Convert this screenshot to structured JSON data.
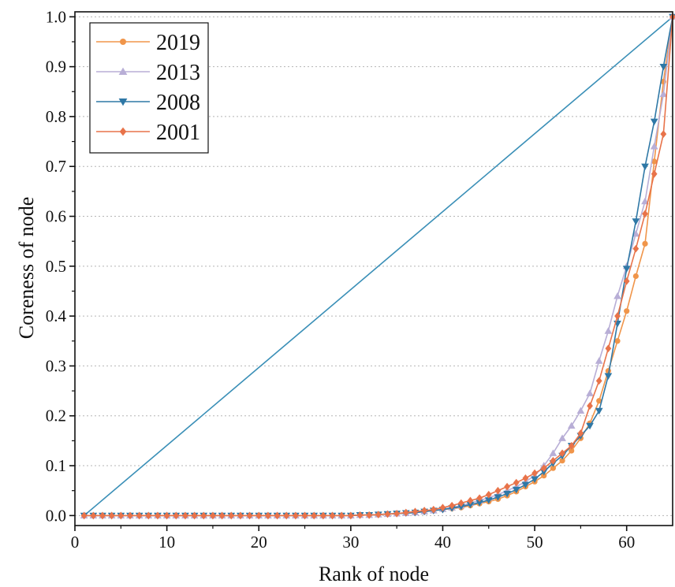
{
  "chart_data": {
    "type": "line",
    "title": "",
    "xlabel": "Rank of node",
    "ylabel": "Coreness of node",
    "xlim": [
      0,
      65
    ],
    "ylim": [
      -0.02,
      1.01
    ],
    "xticks": [
      0,
      10,
      20,
      30,
      40,
      50,
      60
    ],
    "xtick_labels": [
      "0",
      "10",
      "20",
      "30",
      "40",
      "50",
      "60"
    ],
    "yticks": [
      0.0,
      0.1,
      0.2,
      0.3,
      0.4,
      0.5,
      0.6,
      0.7,
      0.8,
      0.9,
      1.0
    ],
    "ytick_labels": [
      "0.0",
      "0.1",
      "0.2",
      "0.3",
      "0.4",
      "0.5",
      "0.6",
      "0.7",
      "0.8",
      "0.9",
      "1.0"
    ],
    "grid": "horizontal dotted",
    "legend_position": "top-left",
    "reference_line": {
      "x": [
        1,
        65
      ],
      "y": [
        0,
        1
      ],
      "color": "#3a8fb7"
    },
    "series": [
      {
        "name": "2019",
        "color": "#f0954a",
        "marker": "circle",
        "x": [
          1,
          2,
          3,
          4,
          5,
          6,
          7,
          8,
          9,
          10,
          11,
          12,
          13,
          14,
          15,
          16,
          17,
          18,
          19,
          20,
          21,
          22,
          23,
          24,
          25,
          26,
          27,
          28,
          29,
          30,
          31,
          32,
          33,
          34,
          35,
          36,
          37,
          38,
          39,
          40,
          41,
          42,
          43,
          44,
          45,
          46,
          47,
          48,
          49,
          50,
          51,
          52,
          53,
          54,
          55,
          56,
          57,
          58,
          59,
          60,
          61,
          62,
          63,
          64,
          65
        ],
        "y": [
          0,
          0,
          0,
          0,
          0,
          0,
          0,
          0,
          0,
          0,
          0,
          0,
          0,
          0,
          0,
          0,
          0,
          0,
          0,
          0,
          0,
          0,
          0,
          0,
          0,
          0,
          0,
          0,
          0,
          0,
          0.001,
          0.001,
          0.002,
          0.003,
          0.004,
          0.005,
          0.006,
          0.008,
          0.01,
          0.012,
          0.014,
          0.016,
          0.02,
          0.024,
          0.028,
          0.033,
          0.04,
          0.048,
          0.058,
          0.068,
          0.08,
          0.095,
          0.11,
          0.13,
          0.155,
          0.185,
          0.23,
          0.29,
          0.35,
          0.41,
          0.48,
          0.545,
          0.71,
          0.87,
          1.0
        ]
      },
      {
        "name": "2013",
        "color": "#b8aed6",
        "marker": "triangle-up",
        "x": [
          1,
          2,
          3,
          4,
          5,
          6,
          7,
          8,
          9,
          10,
          11,
          12,
          13,
          14,
          15,
          16,
          17,
          18,
          19,
          20,
          21,
          22,
          23,
          24,
          25,
          26,
          27,
          28,
          29,
          30,
          31,
          32,
          33,
          34,
          35,
          36,
          37,
          38,
          39,
          40,
          41,
          42,
          43,
          44,
          45,
          46,
          47,
          48,
          49,
          50,
          51,
          52,
          53,
          54,
          55,
          56,
          57,
          58,
          59,
          60,
          61,
          62,
          63,
          64,
          65
        ],
        "y": [
          0,
          0,
          0,
          0,
          0,
          0,
          0,
          0,
          0,
          0,
          0,
          0,
          0,
          0,
          0,
          0,
          0,
          0,
          0,
          0,
          0,
          0,
          0,
          0,
          0,
          0,
          0,
          0,
          0,
          0,
          0.001,
          0.001,
          0.002,
          0.003,
          0.004,
          0.005,
          0.006,
          0.008,
          0.01,
          0.013,
          0.016,
          0.02,
          0.025,
          0.03,
          0.036,
          0.042,
          0.05,
          0.058,
          0.068,
          0.08,
          0.1,
          0.125,
          0.155,
          0.18,
          0.21,
          0.245,
          0.31,
          0.37,
          0.44,
          0.5,
          0.565,
          0.63,
          0.74,
          0.845,
          1.0
        ]
      },
      {
        "name": "2008",
        "color": "#2f78a6",
        "marker": "triangle-down",
        "x": [
          1,
          2,
          3,
          4,
          5,
          6,
          7,
          8,
          9,
          10,
          11,
          12,
          13,
          14,
          15,
          16,
          17,
          18,
          19,
          20,
          21,
          22,
          23,
          24,
          25,
          26,
          27,
          28,
          29,
          30,
          31,
          32,
          33,
          34,
          35,
          36,
          37,
          38,
          39,
          40,
          41,
          42,
          43,
          44,
          45,
          46,
          47,
          48,
          49,
          50,
          51,
          52,
          53,
          54,
          55,
          56,
          57,
          58,
          59,
          60,
          61,
          62,
          63,
          64,
          65
        ],
        "y": [
          0,
          0,
          0,
          0,
          0,
          0,
          0,
          0,
          0,
          0,
          0,
          0,
          0,
          0,
          0,
          0,
          0,
          0,
          0,
          0,
          0,
          0,
          0,
          0,
          0,
          0,
          0,
          0,
          0,
          0,
          0.001,
          0.001,
          0.002,
          0.003,
          0.004,
          0.005,
          0.006,
          0.008,
          0.01,
          0.012,
          0.015,
          0.018,
          0.022,
          0.026,
          0.031,
          0.037,
          0.044,
          0.052,
          0.062,
          0.073,
          0.088,
          0.105,
          0.12,
          0.14,
          0.16,
          0.18,
          0.21,
          0.28,
          0.385,
          0.495,
          0.59,
          0.7,
          0.79,
          0.9,
          1.0
        ]
      },
      {
        "name": "2001",
        "color": "#e8734a",
        "marker": "diamond",
        "x": [
          1,
          2,
          3,
          4,
          5,
          6,
          7,
          8,
          9,
          10,
          11,
          12,
          13,
          14,
          15,
          16,
          17,
          18,
          19,
          20,
          21,
          22,
          23,
          24,
          25,
          26,
          27,
          28,
          29,
          30,
          31,
          32,
          33,
          34,
          35,
          36,
          37,
          38,
          39,
          40,
          41,
          42,
          43,
          44,
          45,
          46,
          47,
          48,
          49,
          50,
          51,
          52,
          53,
          54,
          55,
          56,
          57,
          58,
          59,
          60,
          61,
          62,
          63,
          64,
          65
        ],
        "y": [
          0,
          0,
          0,
          0,
          0,
          0,
          0,
          0,
          0,
          0,
          0,
          0,
          0,
          0,
          0,
          0,
          0,
          0,
          0,
          0,
          0,
          0,
          0,
          0,
          0,
          0,
          0,
          0,
          0,
          0,
          0.001,
          0.001,
          0.002,
          0.003,
          0.004,
          0.006,
          0.008,
          0.01,
          0.012,
          0.016,
          0.02,
          0.025,
          0.03,
          0.035,
          0.042,
          0.05,
          0.058,
          0.066,
          0.075,
          0.085,
          0.095,
          0.11,
          0.125,
          0.14,
          0.165,
          0.22,
          0.27,
          0.335,
          0.4,
          0.47,
          0.535,
          0.605,
          0.685,
          0.765,
          1.0
        ]
      }
    ]
  }
}
